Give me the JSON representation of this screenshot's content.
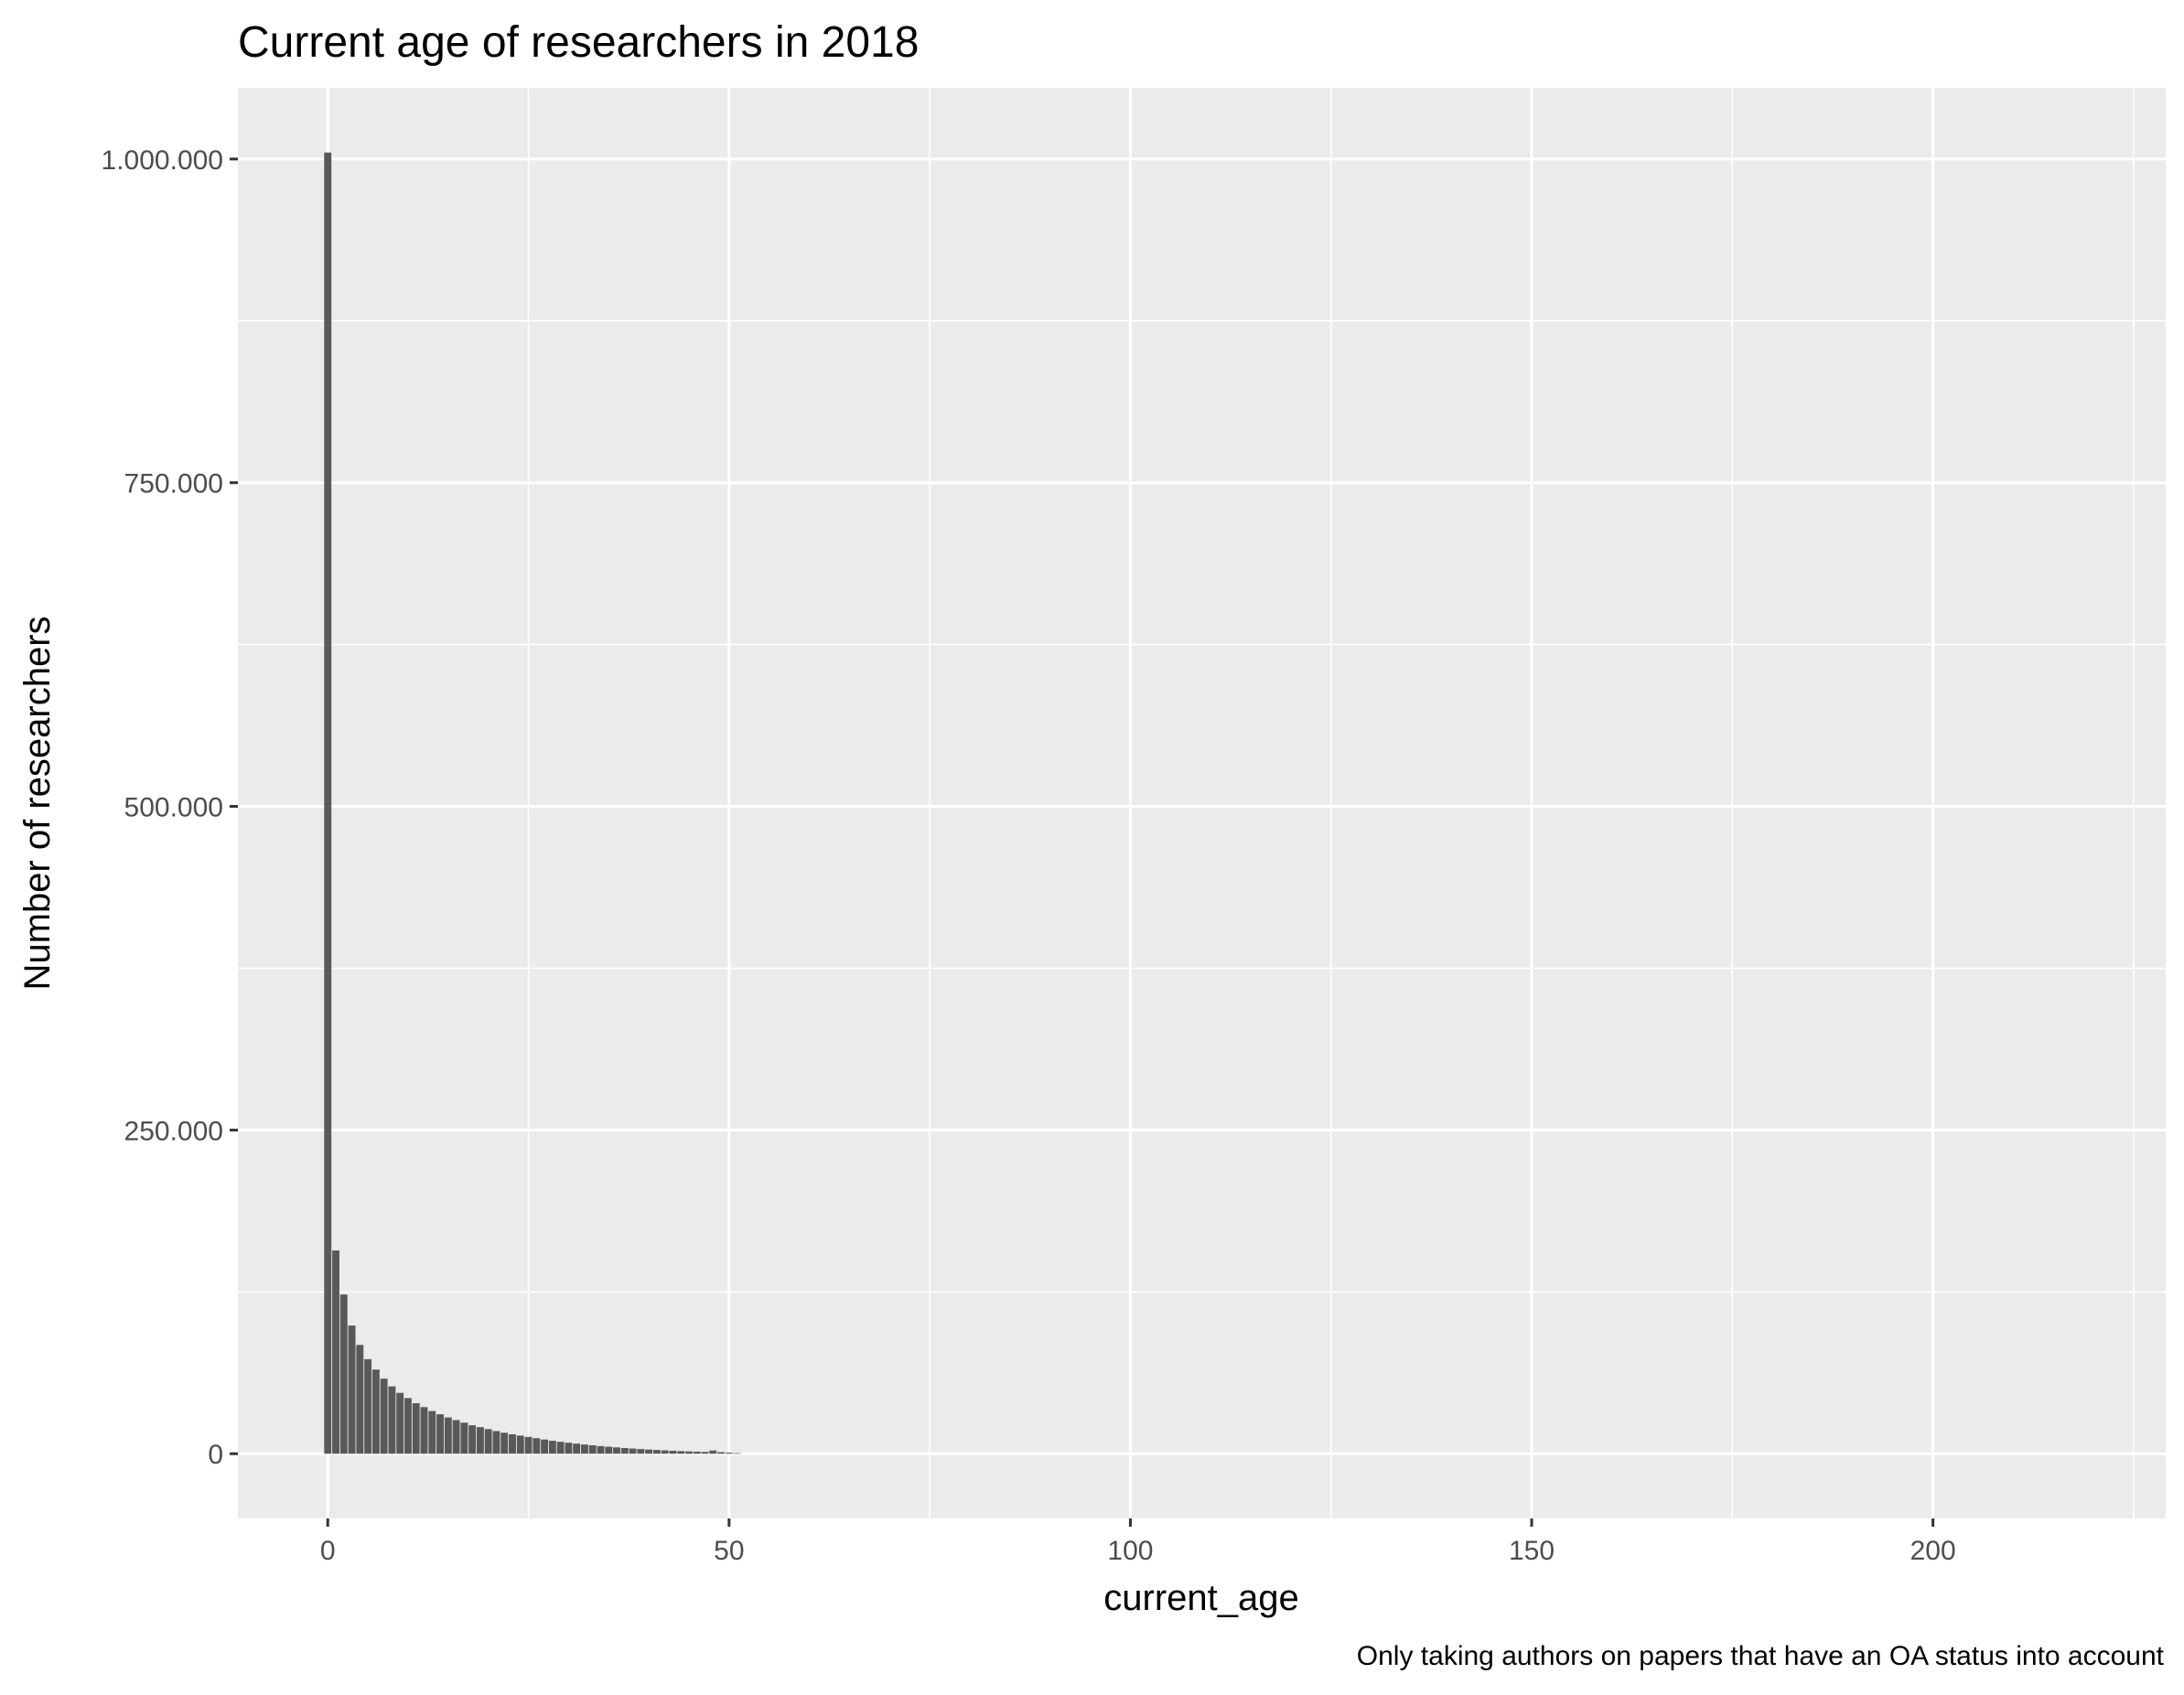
{
  "chart_data": {
    "type": "bar",
    "title": "Current age of researchers in 2018",
    "xlabel": "current_age",
    "ylabel": "Number of researchers",
    "caption": "Only taking authors on papers that have an OA status into account",
    "xlim": [
      -11.2,
      229
    ],
    "ylim": [
      -50000,
      1055000
    ],
    "x_ticks": [
      0,
      50,
      100,
      150,
      200
    ],
    "x_tick_labels": [
      "0",
      "50",
      "100",
      "150",
      "200"
    ],
    "y_ticks": [
      0,
      250000,
      500000,
      750000,
      1000000
    ],
    "y_tick_labels": [
      "0",
      "250.000",
      "500.000",
      "750.000",
      "1.000.000"
    ],
    "grid": true,
    "bar_color": "#595959",
    "panel_color": "#ebebeb",
    "gridline_color": "#ffffff",
    "x": [
      0,
      1,
      2,
      3,
      4,
      5,
      6,
      7,
      8,
      9,
      10,
      11,
      12,
      13,
      14,
      15,
      16,
      17,
      18,
      19,
      20,
      21,
      22,
      23,
      24,
      25,
      26,
      27,
      28,
      29,
      30,
      31,
      32,
      33,
      34,
      35,
      36,
      37,
      38,
      39,
      40,
      41,
      42,
      43,
      44,
      45,
      46,
      47,
      48,
      49,
      50,
      51
    ],
    "values": [
      1005000,
      157000,
      123000,
      99000,
      84000,
      73000,
      65000,
      58000,
      52000,
      47000,
      43000,
      39000,
      36000,
      33000,
      30500,
      28000,
      26000,
      24000,
      22000,
      20500,
      19000,
      17500,
      16200,
      15000,
      14000,
      13000,
      12000,
      11000,
      10000,
      9200,
      8500,
      7800,
      7100,
      6500,
      5900,
      5400,
      4900,
      4400,
      4000,
      3600,
      3200,
      2900,
      2600,
      2300,
      2000,
      1800,
      1600,
      1400,
      2500,
      1200,
      800,
      500
    ]
  }
}
